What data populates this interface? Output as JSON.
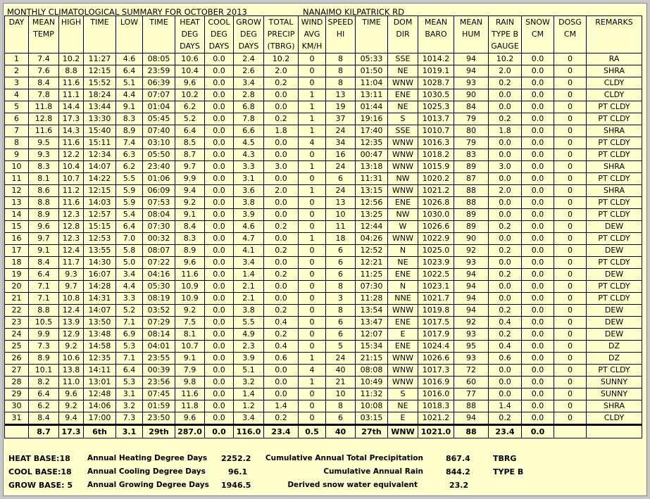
{
  "title": "MONTHLY CLIMATOLOGICAL SUMMARY FOR OCTOBER 2013",
  "station": "NANAIMO KILPATRICK RD",
  "columns": [
    "DAY",
    "MEAN TEMP",
    "HIGH",
    "TIME",
    "LOW",
    "TIME",
    "HEAT DEG DAYS",
    "COOL DEG DAYS",
    "GROW DEG DAYS",
    "TOTAL PRECIP (TBRG)",
    "WIND AVG KM/H",
    "SPEED HI",
    "TIME",
    "DOM DIR",
    "MEAN BARO",
    "MEAN HUM",
    "RAIN TYPE B GAUGE",
    "SNOW CM",
    "DOSG CM",
    "REMARKS"
  ],
  "rows": [
    [
      "1",
      "7.4",
      "10.2",
      "11:27",
      "4.6",
      "08:05",
      "10.6",
      "0.0",
      "2.4",
      "10.2",
      "0",
      "8",
      "05:33",
      "SSE",
      "1014.2",
      "94",
      "10.2",
      "0.0",
      "0",
      "RA"
    ],
    [
      "2",
      "7.6",
      "8.8",
      "12:15",
      "6.4",
      "23:59",
      "10.4",
      "0.0",
      "2.6",
      "2.0",
      "0",
      "8",
      "01:50",
      "NE",
      "1019.1",
      "94",
      "2.0",
      "0.0",
      "0",
      "SHRA"
    ],
    [
      "3",
      "8.4",
      "11.6",
      "15:52",
      "5.1",
      "06:39",
      "9.6",
      "0.0",
      "3.4",
      "0.2",
      "0",
      "8",
      "11:04",
      "WNW",
      "1028.7",
      "93",
      "0.2",
      "0.0",
      "0",
      "CLDY"
    ],
    [
      "4",
      "7.8",
      "11.1",
      "18:24",
      "4.4",
      "07:07",
      "10.2",
      "0.0",
      "2.8",
      "0.0",
      "1",
      "13",
      "13:11",
      "ENE",
      "1030.5",
      "90",
      "0.0",
      "0.0",
      "0",
      "CLDY"
    ],
    [
      "5",
      "11.8",
      "14.4",
      "13:44",
      "9.1",
      "01:04",
      "6.2",
      "0.0",
      "6.8",
      "0.0",
      "1",
      "19",
      "01:44",
      "NE",
      "1025.3",
      "84",
      "0.0",
      "0.0",
      "0",
      "PT CLDY"
    ],
    [
      "6",
      "12.8",
      "17.3",
      "13:30",
      "8.3",
      "05:45",
      "5.2",
      "0.0",
      "7.8",
      "0.2",
      "1",
      "37",
      "19:16",
      "S",
      "1013.7",
      "79",
      "0.2",
      "0.0",
      "0",
      "PT CLDY"
    ],
    [
      "7",
      "11.6",
      "14.3",
      "15:40",
      "8.9",
      "07:40",
      "6.4",
      "0.0",
      "6.6",
      "1.8",
      "1",
      "24",
      "17:40",
      "SSE",
      "1010.7",
      "80",
      "1.8",
      "0.0",
      "0",
      "SHRA"
    ],
    [
      "8",
      "9.5",
      "11.6",
      "15:11",
      "7.4",
      "03:10",
      "8.5",
      "0.0",
      "4.5",
      "0.0",
      "4",
      "34",
      "12:35",
      "WNW",
      "1016.3",
      "79",
      "0.0",
      "0.0",
      "0",
      "PT CLDY"
    ],
    [
      "9",
      "9.3",
      "12.2",
      "12:34",
      "6.3",
      "05:50",
      "8.7",
      "0.0",
      "4.3",
      "0.0",
      "0",
      "16",
      "00:47",
      "WNW",
      "1018.2",
      "83",
      "0.0",
      "0.0",
      "0",
      "PT CLDY"
    ],
    [
      "10",
      "8.3",
      "10.4",
      "14:07",
      "6.2",
      "23:40",
      "9.7",
      "0.0",
      "3.3",
      "3.0",
      "1",
      "24",
      "13:18",
      "WNW",
      "1015.9",
      "89",
      "3.0",
      "0.0",
      "0",
      "SHRA"
    ],
    [
      "11",
      "8.1",
      "10.7",
      "14:22",
      "5.5",
      "01:06",
      "9.9",
      "0.0",
      "3.1",
      "0.0",
      "0",
      "6",
      "11:31",
      "NW",
      "1020.2",
      "87",
      "0.0",
      "0.0",
      "0",
      "PT CLDY"
    ],
    [
      "12",
      "8.6",
      "11.2",
      "12:15",
      "5.9",
      "06:09",
      "9.4",
      "0.0",
      "3.6",
      "2.0",
      "1",
      "24",
      "13:15",
      "WNW",
      "1021.2",
      "88",
      "2.0",
      "0.0",
      "0",
      "SHRA"
    ],
    [
      "13",
      "8.8",
      "11.6",
      "14:03",
      "5.9",
      "07:53",
      "9.2",
      "0.0",
      "3.8",
      "0.0",
      "0",
      "13",
      "12:56",
      "ENE",
      "1026.8",
      "88",
      "0.0",
      "0.0",
      "0",
      "PT CLDY"
    ],
    [
      "14",
      "8.9",
      "12.3",
      "12:57",
      "5.4",
      "08:04",
      "9.1",
      "0.0",
      "3.9",
      "0.0",
      "0",
      "10",
      "13:25",
      "NW",
      "1030.0",
      "89",
      "0.0",
      "0.0",
      "0",
      "PT CLDY"
    ],
    [
      "15",
      "9.6",
      "12.8",
      "15:15",
      "6.4",
      "07:30",
      "8.4",
      "0.0",
      "4.6",
      "0.2",
      "0",
      "11",
      "12:44",
      "W",
      "1026.6",
      "89",
      "0.2",
      "0.0",
      "0",
      "DEW"
    ],
    [
      "16",
      "9.7",
      "12.3",
      "12:53",
      "7.0",
      "00:32",
      "8.3",
      "0.0",
      "4.7",
      "0.0",
      "1",
      "18",
      "04:26",
      "WNW",
      "1022.9",
      "90",
      "0.0",
      "0.0",
      "0",
      "PT CLDY"
    ],
    [
      "17",
      "9.1",
      "12.4",
      "13:55",
      "5.8",
      "08:07",
      "8.9",
      "0.0",
      "4.1",
      "0.2",
      "0",
      "6",
      "12:52",
      "N",
      "1025.0",
      "92",
      "0.2",
      "0.0",
      "0",
      "DEW"
    ],
    [
      "18",
      "8.4",
      "11.7",
      "14:30",
      "5.0",
      "07:22",
      "9.6",
      "0.0",
      "3.4",
      "0.0",
      "0",
      "6",
      "12:21",
      "NE",
      "1023.9",
      "93",
      "0.0",
      "0.0",
      "0",
      "PT CLDY"
    ],
    [
      "19",
      "6.4",
      "9.3",
      "16:07",
      "3.4",
      "04:16",
      "11.6",
      "0.0",
      "1.4",
      "0.2",
      "0",
      "6",
      "11:25",
      "ENE",
      "1022.5",
      "94",
      "0.2",
      "0.0",
      "0",
      "DEW"
    ],
    [
      "20",
      "7.1",
      "9.7",
      "14:28",
      "4.4",
      "05:30",
      "10.9",
      "0.0",
      "2.1",
      "0.0",
      "0",
      "8",
      "07:30",
      "N",
      "1023.1",
      "94",
      "0.0",
      "0.0",
      "0",
      "PT CLDY"
    ],
    [
      "21",
      "7.1",
      "10.8",
      "14:31",
      "3.3",
      "08:19",
      "10.9",
      "0.0",
      "2.1",
      "0.0",
      "0",
      "3",
      "11:28",
      "NNE",
      "1021.7",
      "94",
      "0.0",
      "0.0",
      "0",
      "PT CLDY"
    ],
    [
      "22",
      "8.8",
      "12.4",
      "14:07",
      "5.2",
      "03:52",
      "9.2",
      "0.0",
      "3.8",
      "0.2",
      "0",
      "8",
      "13:54",
      "WNW",
      "1019.8",
      "94",
      "0.2",
      "0.0",
      "0",
      "DEW"
    ],
    [
      "23",
      "10.5",
      "13.9",
      "13:50",
      "7.1",
      "07:29",
      "7.5",
      "0.0",
      "5.5",
      "0.4",
      "0",
      "6",
      "13:47",
      "ENE",
      "1017.5",
      "92",
      "0.4",
      "0.0",
      "0",
      "DEW"
    ],
    [
      "24",
      "9.9",
      "12.9",
      "13:48",
      "6.9",
      "08:14",
      "8.1",
      "0.0",
      "4.9",
      "0.2",
      "0",
      "6",
      "12:07",
      "E",
      "1017.9",
      "93",
      "0.2",
      "0.0",
      "0",
      "DEW"
    ],
    [
      "25",
      "7.3",
      "9.2",
      "14:58",
      "5.3",
      "04:01",
      "10.7",
      "0.0",
      "2.3",
      "0.4",
      "0",
      "5",
      "15:34",
      "ENE",
      "1024.4",
      "95",
      "0.4",
      "0.0",
      "0",
      "DZ"
    ],
    [
      "26",
      "8.9",
      "10.6",
      "12:35",
      "7.1",
      "23:55",
      "9.1",
      "0.0",
      "3.9",
      "0.6",
      "1",
      "24",
      "21:15",
      "WNW",
      "1026.6",
      "93",
      "0.6",
      "0.0",
      "0",
      "DZ"
    ],
    [
      "27",
      "10.1",
      "13.8",
      "14:11",
      "6.4",
      "00:39",
      "7.9",
      "0.0",
      "5.1",
      "0.0",
      "4",
      "40",
      "08:08",
      "WNW",
      "1017.3",
      "72",
      "0.0",
      "0.0",
      "0",
      "PT CLDY"
    ],
    [
      "28",
      "8.2",
      "11.0",
      "13:01",
      "5.3",
      "23:56",
      "9.8",
      "0.0",
      "3.2",
      "0.0",
      "1",
      "21",
      "10:49",
      "WNW",
      "1016.9",
      "60",
      "0.0",
      "0.0",
      "0",
      "SUNNY"
    ],
    [
      "29",
      "6.4",
      "9.6",
      "12:48",
      "3.1",
      "07:45",
      "11.6",
      "0.0",
      "1.4",
      "0.0",
      "0",
      "10",
      "11:32",
      "S",
      "1016.0",
      "77",
      "0.0",
      "0.0",
      "0",
      "SUNNY"
    ],
    [
      "30",
      "6.2",
      "9.2",
      "14:06",
      "3.2",
      "01:59",
      "11.8",
      "0.0",
      "1.2",
      "1.4",
      "0",
      "8",
      "10:08",
      "NE",
      "1018.3",
      "88",
      "1.4",
      "0.0",
      "0",
      "SHRA"
    ],
    [
      "31",
      "8.4",
      "9.4",
      "17:00",
      "7.3",
      "23:50",
      "9.6",
      "0.0",
      "3.4",
      "0.2",
      "0",
      "6",
      "03:15",
      "E",
      "1021.2",
      "94",
      "0.2",
      "0.0",
      "0",
      "CLDY"
    ]
  ],
  "totals": [
    "",
    "8.7",
    "17.3",
    "6th",
    "3.1",
    "29th",
    "287.0",
    "0.0",
    "116.0",
    "23.4",
    "0.5",
    "40",
    "27th",
    "WNW",
    "1021.0",
    "88",
    "23.4",
    "0.0",
    "",
    ""
  ],
  "footer": {
    "heat_base": "HEAT BASE:18",
    "cool_base": "COOL BASE:18",
    "grow_base": "GROW BASE: 5",
    "heat_label": "Annual Heating Degree Days",
    "heat_value": "2252.2",
    "cool_label": "Annual Cooling Degree Days",
    "cool_value": "96.1",
    "grow_label": "Annual Growing Degree Days",
    "grow_value": "1946.5",
    "precip_label": "Cumulative Annual Total Precipitation",
    "precip_value": "867.4",
    "precip_unit": "TBRG",
    "rain_label": "Cumulative Annual Rain",
    "rain_value": "844.2",
    "rain_unit": "TYPE B",
    "snow_label": "Derived snow water equivalent",
    "snow_value": "23.2"
  }
}
